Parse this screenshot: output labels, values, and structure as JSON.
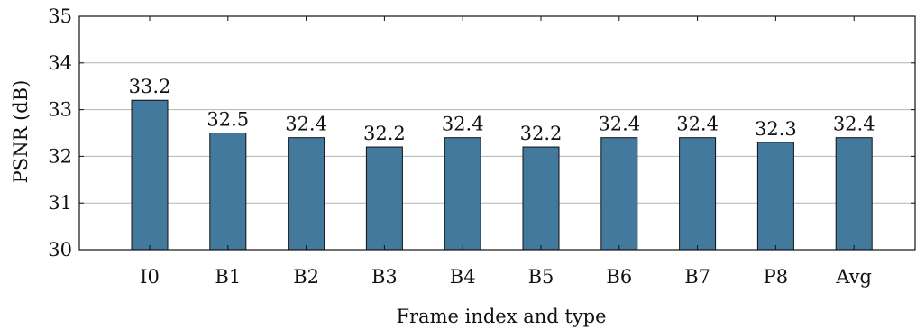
{
  "chart_data": {
    "type": "bar",
    "title": "",
    "xlabel": "Frame index and type",
    "ylabel": "PSNR (dB)",
    "categories": [
      "I0",
      "B1",
      "B2",
      "B3",
      "B4",
      "B5",
      "B6",
      "B7",
      "P8",
      "Avg"
    ],
    "values": [
      33.2,
      32.5,
      32.4,
      32.2,
      32.4,
      32.2,
      32.4,
      32.4,
      32.3,
      32.4
    ],
    "data_labels": [
      "33.2",
      "32.5",
      "32.4",
      "32.2",
      "32.4",
      "32.2",
      "32.4",
      "32.4",
      "32.3",
      "32.4"
    ],
    "ylim": [
      30,
      35
    ],
    "yticks": [
      30,
      31,
      32,
      33,
      34,
      35
    ],
    "grid": "horizontal",
    "legend": "none",
    "bar_color": "#44799e",
    "bar_edge_color": "#111111"
  }
}
